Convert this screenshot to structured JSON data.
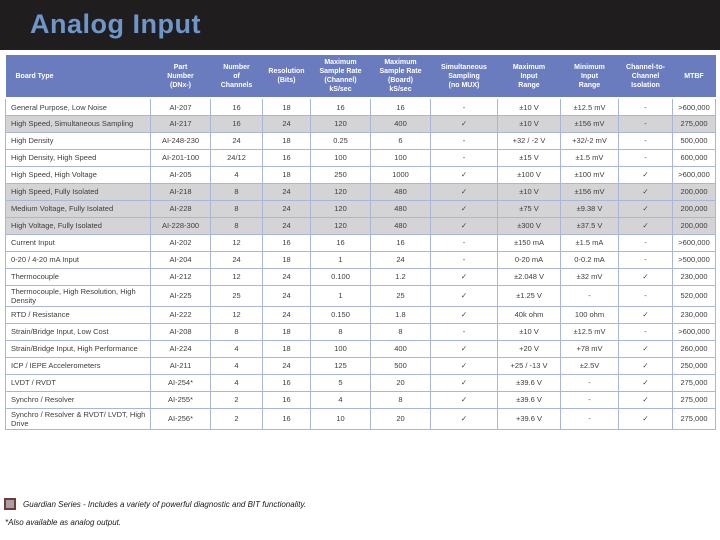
{
  "title": "Analog Input",
  "colors": {
    "top_band_bg": "#201d1e",
    "title_color": "#6e96c8",
    "header_bg": "#6b7cbe",
    "guardian_row_bg": "#d4d4d6",
    "grid_line": "#aab6d8",
    "legend_square_fill": "#a8a0a2",
    "legend_square_border": "#6e3c3c"
  },
  "table": {
    "columns": [
      {
        "key": "board_type",
        "label": "Board Type"
      },
      {
        "key": "part_number",
        "label": "Part\nNumber\n(DNx-)"
      },
      {
        "key": "channels",
        "label": "Number\nof\nChannels"
      },
      {
        "key": "resolution",
        "label": "Resolution\n(Bits)"
      },
      {
        "key": "rate_channel",
        "label": "Maximum\nSample Rate\n(Channel)\nkS/sec"
      },
      {
        "key": "rate_board",
        "label": "Maximum\nSample Rate\n(Board)\nkS/sec"
      },
      {
        "key": "simultaneous",
        "label": "Simultaneous\nSampling\n(no MUX)"
      },
      {
        "key": "max_range",
        "label": "Maximum\nInput\nRange"
      },
      {
        "key": "min_range",
        "label": "Minimum\nInput\nRange"
      },
      {
        "key": "isolation",
        "label": "Channel-to-\nChannel\nIsolation"
      },
      {
        "key": "mtbf",
        "label": "MTBF"
      }
    ],
    "rows": [
      {
        "board_type": "General Purpose, Low Noise",
        "part_number": "AI-207",
        "channels": "16",
        "resolution": "18",
        "rate_channel": "16",
        "rate_board": "16",
        "simultaneous": "-",
        "max_range": "±10 V",
        "min_range": "±12.5 mV",
        "isolation": "-",
        "mtbf": ">600,000",
        "guardian": false
      },
      {
        "board_type": "High Speed, Simultaneous Sampling",
        "part_number": "AI-217",
        "channels": "16",
        "resolution": "24",
        "rate_channel": "120",
        "rate_board": "400",
        "simultaneous": "✓",
        "max_range": "±10 V",
        "min_range": "±156 mV",
        "isolation": "-",
        "mtbf": "275,000",
        "guardian": true
      },
      {
        "board_type": "High Density",
        "part_number": "AI-248-230",
        "channels": "24",
        "resolution": "18",
        "rate_channel": "0.25",
        "rate_board": "6",
        "simultaneous": "-",
        "max_range": "+32 / -2 V",
        "min_range": "+32/-2 mV",
        "isolation": "-",
        "mtbf": "500,000",
        "guardian": false
      },
      {
        "board_type": "High Density, High Speed",
        "part_number": "AI-201-100",
        "channels": "24/12",
        "resolution": "16",
        "rate_channel": "100",
        "rate_board": "100",
        "simultaneous": "-",
        "max_range": "±15 V",
        "min_range": "±1.5 mV",
        "isolation": "-",
        "mtbf": "600,000",
        "guardian": false
      },
      {
        "board_type": "High Speed, High Voltage",
        "part_number": "AI-205",
        "channels": "4",
        "resolution": "18",
        "rate_channel": "250",
        "rate_board": "1000",
        "simultaneous": "✓",
        "max_range": "±100 V",
        "min_range": "±100 mV",
        "isolation": "✓",
        "mtbf": ">600,000",
        "guardian": false
      },
      {
        "board_type": "High Speed, Fully Isolated",
        "part_number": "AI-218",
        "channels": "8",
        "resolution": "24",
        "rate_channel": "120",
        "rate_board": "480",
        "simultaneous": "✓",
        "max_range": "±10 V",
        "min_range": "±156 mV",
        "isolation": "✓",
        "mtbf": "200,000",
        "guardian": true
      },
      {
        "board_type": "Medium Voltage, Fully Isolated",
        "part_number": "AI-228",
        "channels": "8",
        "resolution": "24",
        "rate_channel": "120",
        "rate_board": "480",
        "simultaneous": "✓",
        "max_range": "±75 V",
        "min_range": "±9.38 V",
        "isolation": "✓",
        "mtbf": "200,000",
        "guardian": true
      },
      {
        "board_type": "High Voltage, Fully Isolated",
        "part_number": "AI-228-300",
        "channels": "8",
        "resolution": "24",
        "rate_channel": "120",
        "rate_board": "480",
        "simultaneous": "✓",
        "max_range": "±300 V",
        "min_range": "±37.5 V",
        "isolation": "✓",
        "mtbf": "200,000",
        "guardian": true
      },
      {
        "board_type": "Current Input",
        "part_number": "AI-202",
        "channels": "12",
        "resolution": "16",
        "rate_channel": "16",
        "rate_board": "16",
        "simultaneous": "-",
        "max_range": "±150 mA",
        "min_range": "±1.5 mA",
        "isolation": "-",
        "mtbf": ">600,000",
        "guardian": false
      },
      {
        "board_type": "0-20 / 4-20 mA Input",
        "part_number": "AI-204",
        "channels": "24",
        "resolution": "18",
        "rate_channel": "1",
        "rate_board": "24",
        "simultaneous": "-",
        "max_range": "0-20 mA",
        "min_range": "0-0.2 mA",
        "isolation": "-",
        "mtbf": ">500,000",
        "guardian": false
      },
      {
        "board_type": "Thermocouple",
        "part_number": "AI-212",
        "channels": "12",
        "resolution": "24",
        "rate_channel": "0.100",
        "rate_board": "1.2",
        "simultaneous": "✓",
        "max_range": "±2.048 V",
        "min_range": "±32 mV",
        "isolation": "✓",
        "mtbf": "230,000",
        "guardian": false
      },
      {
        "board_type": "Thermocouple, High Resolution,  High Density",
        "part_number": "AI-225",
        "channels": "25",
        "resolution": "24",
        "rate_channel": "1",
        "rate_board": "25",
        "simultaneous": "✓",
        "max_range": "±1.25 V",
        "min_range": "-",
        "isolation": "-",
        "mtbf": "520,000",
        "guardian": false
      },
      {
        "board_type": "RTD / Resistance",
        "part_number": "AI-222",
        "channels": "12",
        "resolution": "24",
        "rate_channel": "0.150",
        "rate_board": "1.8",
        "simultaneous": "✓",
        "max_range": "40k ohm",
        "min_range": "100 ohm",
        "isolation": "✓",
        "mtbf": "230,000",
        "guardian": false
      },
      {
        "board_type": "Strain/Bridge Input, Low Cost",
        "part_number": "AI-208",
        "channels": "8",
        "resolution": "18",
        "rate_channel": "8",
        "rate_board": "8",
        "simultaneous": "-",
        "max_range": "±10 V",
        "min_range": "±12.5 mV",
        "isolation": "-",
        "mtbf": ">600,000",
        "guardian": false
      },
      {
        "board_type": "Strain/Bridge Input, High Performance",
        "part_number": "AI-224",
        "channels": "4",
        "resolution": "18",
        "rate_channel": "100",
        "rate_board": "400",
        "simultaneous": "✓",
        "max_range": "+20 V",
        "min_range": "+78 mV",
        "isolation": "✓",
        "mtbf": "260,000",
        "guardian": false
      },
      {
        "board_type": "ICP / IEPE Accelerometers",
        "part_number": "AI-211",
        "channels": "4",
        "resolution": "24",
        "rate_channel": "125",
        "rate_board": "500",
        "simultaneous": "✓",
        "max_range": "+25 / -13 V",
        "min_range": "±2.5V",
        "isolation": "✓",
        "mtbf": "250,000",
        "guardian": false
      },
      {
        "board_type": "LVDT / RVDT",
        "part_number": "AI-254*",
        "channels": "4",
        "resolution": "16",
        "rate_channel": "5",
        "rate_board": "20",
        "simultaneous": "✓",
        "max_range": "±39.6 V",
        "min_range": "-",
        "isolation": "✓",
        "mtbf": "275,000",
        "guardian": false
      },
      {
        "board_type": "Synchro / Resolver",
        "part_number": "AI-255*",
        "channels": "2",
        "resolution": "16",
        "rate_channel": "4",
        "rate_board": "8",
        "simultaneous": "✓",
        "max_range": "±39.6 V",
        "min_range": "-",
        "isolation": "✓",
        "mtbf": "275,000",
        "guardian": false
      },
      {
        "board_type": "Synchro / Resolver & RVDT/ LVDT, High Drive",
        "part_number": "AI-256*",
        "channels": "2",
        "resolution": "16",
        "rate_channel": "10",
        "rate_board": "20",
        "simultaneous": "✓",
        "max_range": "+39.6 V",
        "min_range": "-",
        "isolation": "✓",
        "mtbf": "275,000",
        "guardian": false
      }
    ]
  },
  "footer": {
    "legend_text": "Guardian Series - Includes a variety of powerful diagnostic and BIT functionality.",
    "note": "*Also available as analog output."
  }
}
